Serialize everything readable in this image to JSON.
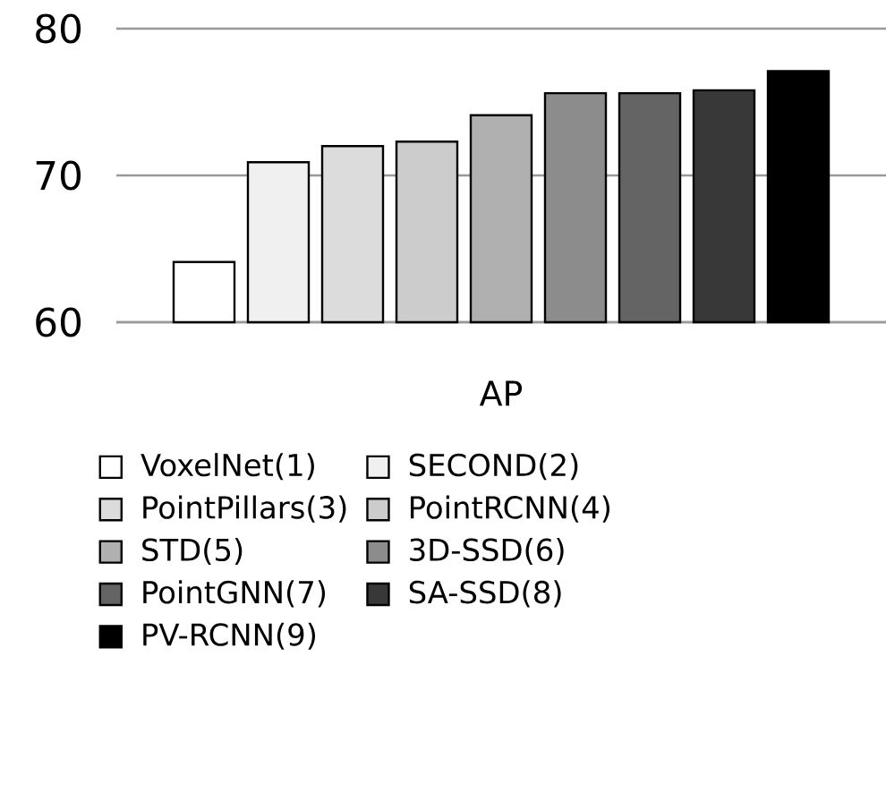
{
  "chart_data": {
    "type": "bar",
    "categories": [
      "AP"
    ],
    "ylim": [
      60,
      80
    ],
    "yticks": [
      60,
      70,
      80
    ],
    "grid": "y",
    "legend": "bottom",
    "series": [
      {
        "name": "VoxelNet(1)",
        "color": "#ffffff",
        "values": [
          64.1
        ]
      },
      {
        "name": "SECOND(2)",
        "color": "#f0f0f0",
        "values": [
          70.9
        ]
      },
      {
        "name": "PointPillars(3)",
        "color": "#dcdcdc",
        "values": [
          72.0
        ]
      },
      {
        "name": "PointRCNN(4)",
        "color": "#cccccc",
        "values": [
          72.3
        ]
      },
      {
        "name": "STD(5)",
        "color": "#b0b0b0",
        "values": [
          74.1
        ]
      },
      {
        "name": "3D-SSD(6)",
        "color": "#8c8c8c",
        "values": [
          75.6
        ]
      },
      {
        "name": "PointGNN(7)",
        "color": "#646464",
        "values": [
          75.6
        ]
      },
      {
        "name": "SA-SSD(8)",
        "color": "#383838",
        "values": [
          75.8
        ]
      },
      {
        "name": "PV-RCNN(9)",
        "color": "#000000",
        "values": [
          77.1
        ]
      }
    ]
  }
}
